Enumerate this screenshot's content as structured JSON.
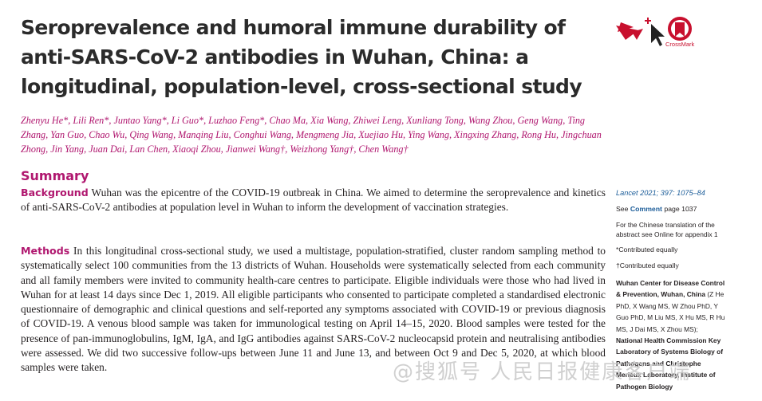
{
  "paper": {
    "title": "Seroprevalence and humoral immune durability of anti-SARS-CoV-2 antibodies in Wuhan, China: a longitudinal, population-level, cross-sectional study",
    "authors": "Zhenyu He*, Lili Ren*, Juntao Yang*, Li Guo*, Luzhao Feng*, Chao Ma, Xia Wang, Zhiwei Leng, Xunliang Tong, Wang Zhou, Geng Wang, Ting Zhang, Yan Guo, Chao Wu, Qing Wang, Manqing Liu, Conghui Wang, Mengmeng Jia, Xuejiao Hu, Ying Wang, Xingxing Zhang, Rong Hu, Jingchuan Zhong, Jin Yang, Juan Dai, Lan Chen, Xiaoqi Zhou, Jianwei Wang†, Weizhong Yang†, Chen Wang†",
    "crossmark_label": "CrossMark"
  },
  "summary": {
    "heading": "Summary",
    "background_label": "Background",
    "background_text": "Wuhan was the epicentre of the COVID-19 outbreak in China. We aimed to determine the seroprevalence and kinetics of anti-SARS-CoV-2 antibodies at population level in Wuhan to inform the development of vaccination strategies.",
    "methods_label": "Methods",
    "methods_text": "In this longitudinal cross-sectional study, we used a multistage, population-stratified, cluster random sampling method to systematically select 100 communities from the 13 districts of Wuhan. Households were systematically selected from each community and all family members were invited to community health-care centres to participate. Eligible individuals were those who had lived in Wuhan for at least 14 days since Dec 1, 2019. All eligible participants who consented to participate completed a standardised electronic questionnaire of demographic and clinical questions and self-reported any symptoms associated with COVID-19 or previous diagnosis of COVID-19. A venous blood sample was taken for immunological testing on April 14–15, 2020. Blood samples were tested for the presence of pan-immunoglobulins, IgM, IgA, and IgG antibodies against SARS-CoV-2 nucleocapsid protein and neutralising antibodies were assessed. We did two successive follow-ups between June 11 and June 13, and between Oct 9 and Dec 5, 2020, at which blood samples were taken."
  },
  "sidebar": {
    "citation": "Lancet 2021; 397: 1075–84",
    "see_prefix": "See",
    "see_link": "Comment",
    "see_suffix": "page 1037",
    "chinese_note": "For the Chinese translation of the abstract see Online for appendix 1",
    "star_note": "*Contributed equally",
    "dagger_note": "†Contributed equally",
    "aff1_name": "Wuhan Center for Disease Control & Prevention, Wuhan, China",
    "aff1_people": "(Z He PhD, X Wang MS, W Zhou PhD, Y Guo PhD, M Liu MS, X Hu MS, R Hu MS, J Dai MS, X Zhou MS);",
    "aff2_name": "National Health Commission Key Laboratory of Systems Biology of Pathogens and Christophe Merieux Laboratory, Institute of Pathogen Biology"
  },
  "watermark": "@搜狐号 人民日报健康客户端",
  "colors": {
    "accent": "#b0176f",
    "link": "#1c5d99",
    "crossmark": "#c8102e"
  }
}
